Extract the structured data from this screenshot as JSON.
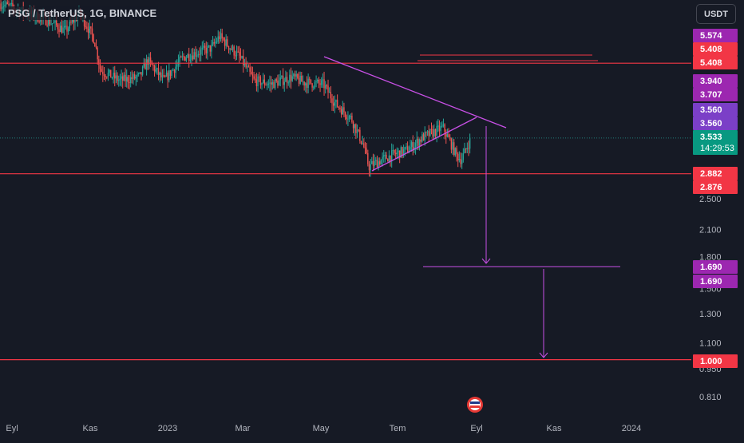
{
  "title": "PSG / TetherUS, 1G, BINANCE",
  "currency_button": "USDT",
  "colors": {
    "background": "#161a25",
    "up": "#26a69a",
    "down": "#ef5350",
    "pattern": "#c850e6",
    "red_line": "#f23645",
    "text": "#d1d4dc",
    "axis_text": "#b2b5be",
    "tag_purple": "#9c27b0",
    "tag_violet": "#7b3fc7",
    "tag_red": "#f23645",
    "tag_green": "#089981"
  },
  "chart_data": {
    "type": "candlestick",
    "title": "PSG / TetherUS, 1G, BINANCE",
    "yscale": "log",
    "ylim": [
      0.75,
      6.2
    ],
    "y_ticks": [
      "0.810",
      "0.950",
      "1.100",
      "1.300",
      "1.500",
      "1.800",
      "2.100",
      "2.500"
    ],
    "x_ticks": [
      "Eyl",
      "Kas",
      "2023",
      "Mar",
      "May",
      "Tem",
      "Eyl",
      "Kas",
      "2024"
    ],
    "series": [
      {
        "note_ranges": "daily candles, approximate closes read from the plot",
        "points": [
          {
            "x": "Eyl",
            "y": 6.6
          },
          {
            "x": "Kas",
            "y": 6.2
          },
          {
            "x": "2023",
            "y": 5.6
          },
          {
            "x": "Mar",
            "y": 5.0
          },
          {
            "x": "May",
            "y": 4.7
          },
          {
            "x": "Tem",
            "y": 3.1
          },
          {
            "x": "Tem",
            "y": 3.5
          },
          {
            "x": "Eyl",
            "y": 3.533
          }
        ]
      }
    ],
    "horizontal_levels": [
      5.408,
      2.882,
      1.0
    ],
    "target_level": 1.69,
    "price_tags": [
      {
        "label": "5.574",
        "price": 5.574,
        "color": "tag_purple"
      },
      {
        "label": "5.408",
        "price": 5.408,
        "color": "tag_red"
      },
      {
        "label": "5.408",
        "price": 5.408,
        "color": "tag_red"
      },
      {
        "label": "3.940",
        "price": 3.94,
        "color": "tag_purple"
      },
      {
        "label": "3.707",
        "price": 3.707,
        "color": "tag_purple"
      },
      {
        "label": "3.560",
        "price": 3.56,
        "color": "tag_violet"
      },
      {
        "label": "3.560",
        "price": 3.56,
        "color": "tag_violet"
      },
      {
        "label": "3.533",
        "price": 3.533,
        "color": "tag_green",
        "sub": "14:29:53"
      },
      {
        "label": "2.882",
        "price": 2.882,
        "color": "tag_red"
      },
      {
        "label": "2.876",
        "price": 2.876,
        "color": "tag_red"
      },
      {
        "label": "1.690",
        "price": 1.69,
        "color": "tag_purple"
      },
      {
        "label": "1.690",
        "price": 1.69,
        "color": "tag_purple"
      },
      {
        "label": "1.000",
        "price": 1.0,
        "color": "tag_red"
      }
    ],
    "grid": false,
    "legend": "none"
  }
}
